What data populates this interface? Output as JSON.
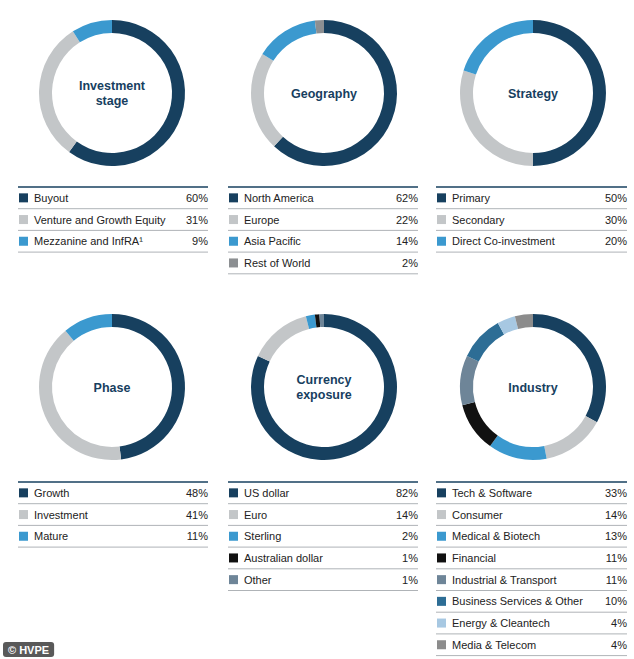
{
  "chart_data": [
    {
      "type": "pie",
      "title": "Investment stage",
      "categories": [
        "Buyout",
        "Venture and Growth Equity",
        "Mezzanine and InfRA¹"
      ],
      "values": [
        60,
        31,
        9
      ],
      "value_labels": [
        "60%",
        "31%",
        "9%"
      ],
      "colors": [
        "#17405f",
        "#c3c6c8",
        "#3b99cf"
      ],
      "legend": "bottom"
    },
    {
      "type": "pie",
      "title": "Geography",
      "categories": [
        "North America",
        "Europe",
        "Asia Pacific",
        "Rest of World"
      ],
      "values": [
        62,
        22,
        14,
        2
      ],
      "value_labels": [
        "62%",
        "22%",
        "14%",
        "2%"
      ],
      "colors": [
        "#17405f",
        "#c3c6c8",
        "#3b99cf",
        "#8c8f92"
      ],
      "legend": "bottom"
    },
    {
      "type": "pie",
      "title": "Strategy",
      "categories": [
        "Primary",
        "Secondary",
        "Direct Co-investment"
      ],
      "values": [
        50,
        30,
        20
      ],
      "value_labels": [
        "50%",
        "30%",
        "20%"
      ],
      "colors": [
        "#17405f",
        "#c3c6c8",
        "#3b99cf"
      ],
      "legend": "bottom"
    },
    {
      "type": "pie",
      "title": "Phase",
      "categories": [
        "Growth",
        "Investment",
        "Mature"
      ],
      "values": [
        48,
        41,
        11
      ],
      "value_labels": [
        "48%",
        "41%",
        "11%"
      ],
      "colors": [
        "#17405f",
        "#c3c6c8",
        "#3b99cf"
      ],
      "legend": "bottom"
    },
    {
      "type": "pie",
      "title": "Currency exposure",
      "categories": [
        "US dollar",
        "Euro",
        "Sterling",
        "Australian dollar",
        "Other"
      ],
      "values": [
        82,
        14,
        2,
        1,
        1
      ],
      "value_labels": [
        "82%",
        "14%",
        "2%",
        "1%",
        "1%"
      ],
      "colors": [
        "#17405f",
        "#c3c6c8",
        "#3b99cf",
        "#111111",
        "#6e8598"
      ],
      "legend": "bottom"
    },
    {
      "type": "pie",
      "title": "Industry",
      "categories": [
        "Tech & Software",
        "Consumer",
        "Medical & Biotech",
        "Financial",
        "Industrial & Transport",
        "Business Services & Other",
        "Energy & Cleantech",
        "Media & Telecom"
      ],
      "values": [
        33,
        14,
        13,
        11,
        11,
        10,
        4,
        4
      ],
      "value_labels": [
        "33%",
        "14%",
        "13%",
        "11%",
        "11%",
        "10%",
        "4%",
        "4%"
      ],
      "colors": [
        "#17405f",
        "#c3c6c8",
        "#3b99cf",
        "#111111",
        "#6e8598",
        "#2d6d95",
        "#a7c8e2",
        "#8c8c8c"
      ],
      "legend": "bottom"
    }
  ],
  "source": "© HVPE"
}
